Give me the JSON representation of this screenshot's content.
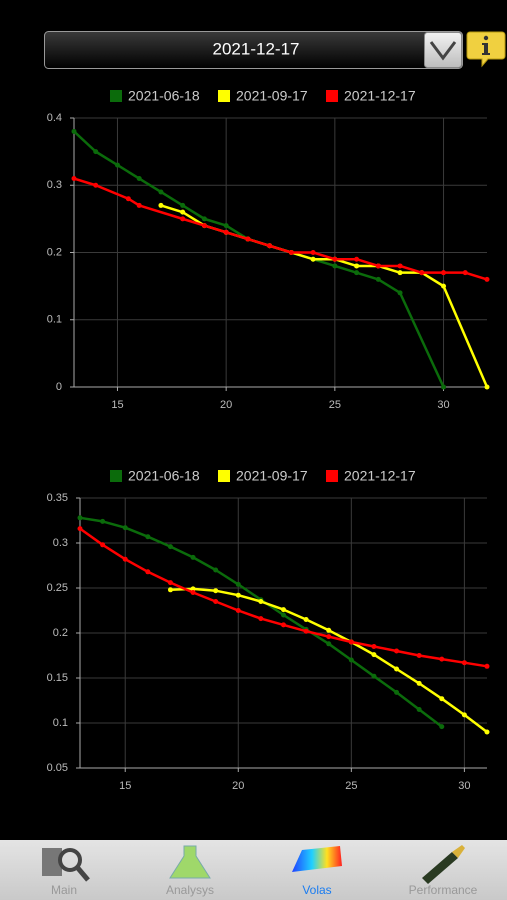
{
  "header": {
    "selected_date": "2021-12-17"
  },
  "tabs": [
    "Main",
    "Analysys",
    "Volas",
    "Performance"
  ],
  "chart_data": [
    {
      "type": "line",
      "xlim": [
        13,
        32
      ],
      "xticks": [
        15,
        20,
        25,
        30
      ],
      "ylim": [
        0,
        0.4
      ],
      "yticks": [
        0,
        0.1,
        0.2,
        0.3,
        0.4
      ],
      "grid": true,
      "series": [
        {
          "name": "2021-06-18",
          "color": "#0b6b0b",
          "x": [
            13,
            14,
            15,
            16,
            17,
            18,
            19,
            20,
            21,
            22,
            23,
            24,
            25,
            26,
            27,
            28,
            30
          ],
          "values": [
            0.38,
            0.35,
            0.33,
            0.31,
            0.29,
            0.27,
            0.25,
            0.24,
            0.22,
            0.21,
            0.2,
            0.19,
            0.18,
            0.17,
            0.16,
            0.14,
            0
          ]
        },
        {
          "name": "2021-09-17",
          "color": "#ffff00",
          "x": [
            17,
            18,
            19,
            20,
            21,
            22,
            23,
            24,
            25,
            26,
            27,
            28,
            29,
            30,
            32
          ],
          "values": [
            0.27,
            0.26,
            0.24,
            0.23,
            0.22,
            0.21,
            0.2,
            0.19,
            0.19,
            0.18,
            0.18,
            0.17,
            0.17,
            0.15,
            0
          ]
        },
        {
          "name": "2021-12-17",
          "color": "#ff0000",
          "x": [
            13,
            14,
            15.5,
            16,
            18,
            19,
            20,
            21,
            22,
            23,
            24,
            25,
            26,
            27,
            28,
            29,
            30,
            31,
            32
          ],
          "values": [
            0.31,
            0.3,
            0.28,
            0.27,
            0.25,
            0.24,
            0.23,
            0.22,
            0.21,
            0.2,
            0.2,
            0.19,
            0.19,
            0.18,
            0.18,
            0.17,
            0.17,
            0.17,
            0.16
          ]
        }
      ]
    },
    {
      "type": "line",
      "xlim": [
        13,
        31
      ],
      "xticks": [
        15,
        20,
        25,
        30
      ],
      "ylim": [
        0.05,
        0.35
      ],
      "yticks": [
        0.05,
        0.1,
        0.15,
        0.2,
        0.25,
        0.3,
        0.35
      ],
      "grid": true,
      "series": [
        {
          "name": "2021-06-18",
          "color": "#0b6b0b",
          "x": [
            13,
            14,
            15,
            16,
            17,
            18,
            19,
            20,
            21,
            22,
            23,
            24,
            25,
            26,
            27,
            28,
            29
          ],
          "values": [
            0.328,
            0.324,
            0.317,
            0.307,
            0.296,
            0.284,
            0.27,
            0.254,
            0.237,
            0.22,
            0.204,
            0.188,
            0.17,
            0.152,
            0.134,
            0.115,
            0.096
          ]
        },
        {
          "name": "2021-09-17",
          "color": "#ffff00",
          "x": [
            17,
            18,
            19,
            20,
            21,
            22,
            23,
            24,
            25,
            26,
            27,
            28,
            29,
            30,
            31
          ],
          "values": [
            0.248,
            0.249,
            0.247,
            0.242,
            0.235,
            0.226,
            0.215,
            0.203,
            0.19,
            0.176,
            0.16,
            0.144,
            0.127,
            0.109,
            0.09
          ]
        },
        {
          "name": "2021-12-17",
          "color": "#ff0000",
          "x": [
            13,
            14,
            15,
            16,
            17,
            18,
            19,
            20,
            21,
            22,
            23,
            24,
            25,
            26,
            27,
            28,
            29,
            30,
            31
          ],
          "values": [
            0.316,
            0.298,
            0.282,
            0.268,
            0.256,
            0.245,
            0.235,
            0.225,
            0.216,
            0.209,
            0.202,
            0.196,
            0.19,
            0.185,
            0.18,
            0.175,
            0.171,
            0.167,
            0.163
          ]
        }
      ]
    }
  ]
}
